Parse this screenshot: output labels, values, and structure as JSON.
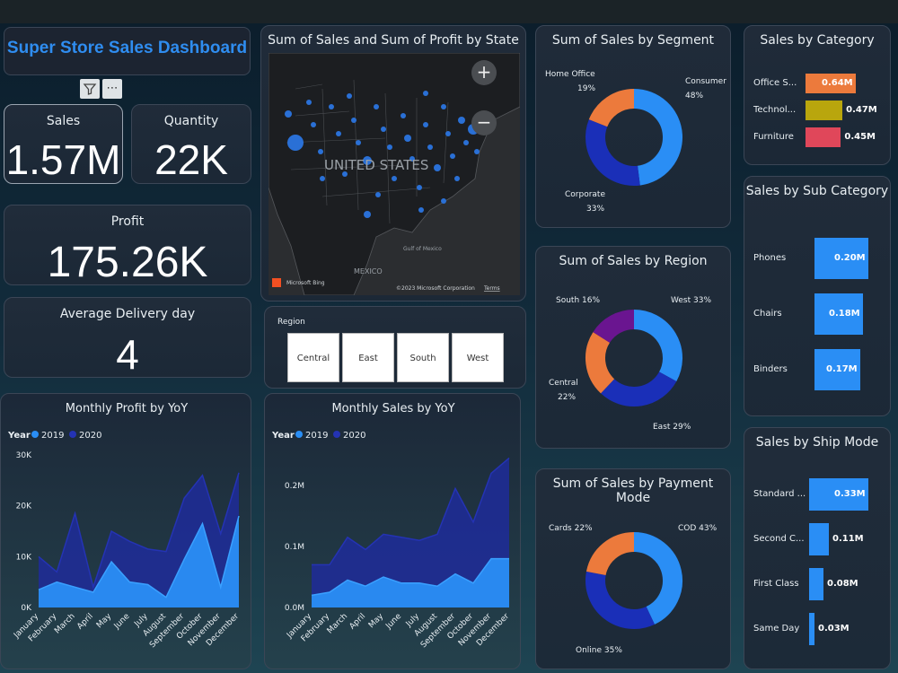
{
  "dashboard": {
    "title": "Super Store Sales Dashboard",
    "filter_icon": "filter-icon",
    "more_icon": "more-icon"
  },
  "kpis": {
    "sales": {
      "label": "Sales",
      "value": "1.57M"
    },
    "quantity": {
      "label": "Quantity",
      "value": "22K"
    },
    "profit": {
      "label": "Profit",
      "value": "175.26K"
    },
    "delivery": {
      "label": "Average Delivery day",
      "value": "4"
    }
  },
  "map": {
    "title": "Sum of Sales and Sum of Profit by State",
    "country_label": "UNITED STATES",
    "mexico_label": "MEXICO",
    "gulf_label": "Gulf of Mexico",
    "attribution": "Microsoft Bing",
    "copyright": "©2023 Microsoft Corporation",
    "terms": "Terms",
    "zoom_in": "+",
    "zoom_out": "−"
  },
  "region_slicer": {
    "title": "Region",
    "options": [
      "Central",
      "East",
      "South",
      "West"
    ]
  },
  "colors": {
    "blue_light": "#2a8ef5",
    "blue_dark": "#1a2fb8",
    "orange": "#ec7a3c",
    "purple": "#6a1590",
    "olive": "#b9a60d",
    "red": "#e0475a",
    "navy": "#1e2c9a"
  },
  "segment": {
    "title": "Sum of Sales by Segment",
    "slices": [
      {
        "name": "Consumer",
        "pct": "48%",
        "value": 48,
        "color": "#2a8ef5"
      },
      {
        "name": "Corporate",
        "pct": "33%",
        "value": 33,
        "color": "#1a2fb8"
      },
      {
        "name": "Home Office",
        "pct": "19%",
        "value": 19,
        "color": "#ec7a3c"
      }
    ]
  },
  "region_chart": {
    "title": "Sum of Sales by Region",
    "labels": {
      "west": "West 33%",
      "east": "East 29%",
      "central_name": "Central",
      "central_pct": "22%",
      "south": "South 16%"
    },
    "slices": [
      {
        "name": "West",
        "value": 33,
        "color": "#2a8ef5"
      },
      {
        "name": "East",
        "value": 29,
        "color": "#1a2fb8"
      },
      {
        "name": "Central",
        "value": 22,
        "color": "#ec7a3c"
      },
      {
        "name": "South",
        "value": 16,
        "color": "#6a1590"
      }
    ]
  },
  "payment": {
    "title": "Sum of Sales by Payment Mode",
    "labels": {
      "cod": "COD 43%",
      "online": "Online 35%",
      "cards": "Cards 22%"
    },
    "slices": [
      {
        "name": "COD",
        "value": 43,
        "color": "#2a8ef5"
      },
      {
        "name": "Online",
        "value": 35,
        "color": "#1a2fb8"
      },
      {
        "name": "Cards",
        "value": 22,
        "color": "#ec7a3c"
      }
    ]
  },
  "category": {
    "title": "Sales by Category",
    "items": [
      {
        "label": "Office S...",
        "value_label": "0.64M",
        "value": 0.64,
        "color": "#ec7a3c"
      },
      {
        "label": "Technol...",
        "value_label": "0.47M",
        "value": 0.47,
        "color": "#b9a60d"
      },
      {
        "label": "Furniture",
        "value_label": "0.45M",
        "value": 0.45,
        "color": "#e0475a"
      }
    ]
  },
  "subcategory": {
    "title": "Sales by Sub Category",
    "items": [
      {
        "label": "Phones",
        "value_label": "0.20M",
        "value": 0.2
      },
      {
        "label": "Chairs",
        "value_label": "0.18M",
        "value": 0.18
      },
      {
        "label": "Binders",
        "value_label": "0.17M",
        "value": 0.17
      }
    ]
  },
  "shipmode": {
    "title": "Sales by Ship Mode",
    "items": [
      {
        "label": "Standard ...",
        "value_label": "0.33M",
        "value": 0.33
      },
      {
        "label": "Second C...",
        "value_label": "0.11M",
        "value": 0.11
      },
      {
        "label": "First Class",
        "value_label": "0.08M",
        "value": 0.08
      },
      {
        "label": "Same Day",
        "value_label": "0.03M",
        "value": 0.03
      }
    ]
  },
  "chart_data": [
    {
      "type": "area",
      "title": "Monthly Profit by YoY",
      "legend_title": "Year",
      "legend_placement": "top-left",
      "categories": [
        "January",
        "February",
        "March",
        "April",
        "May",
        "June",
        "July",
        "August",
        "September",
        "October",
        "November",
        "December"
      ],
      "yticks": [
        "0K",
        "10K",
        "20K",
        "30K"
      ],
      "ylim": [
        0,
        30000
      ],
      "series": [
        {
          "name": "2020",
          "color": "#1e2c9a",
          "values": [
            10000,
            7000,
            18500,
            4000,
            15000,
            13000,
            11500,
            11000,
            21500,
            26000,
            14500,
            26500
          ]
        },
        {
          "name": "2019",
          "color": "#2a8ef5",
          "values": [
            3500,
            5000,
            4000,
            3000,
            9000,
            5000,
            4500,
            2000,
            9500,
            16500,
            4000,
            18000
          ]
        }
      ]
    },
    {
      "type": "area",
      "title": "Monthly Sales by YoY",
      "legend_title": "Year",
      "legend_placement": "top-left",
      "categories": [
        "January",
        "February",
        "March",
        "April",
        "May",
        "June",
        "July",
        "August",
        "September",
        "October",
        "November",
        "December"
      ],
      "yticks": [
        "0.0M",
        "0.1M",
        "0.2M"
      ],
      "ylim": [
        0,
        0.25
      ],
      "series": [
        {
          "name": "2020",
          "color": "#1e2c9a",
          "values": [
            0.07,
            0.07,
            0.115,
            0.095,
            0.12,
            0.115,
            0.11,
            0.12,
            0.195,
            0.14,
            0.22,
            0.245
          ]
        },
        {
          "name": "2019",
          "color": "#2a8ef5",
          "values": [
            0.02,
            0.025,
            0.045,
            0.035,
            0.05,
            0.04,
            0.04,
            0.035,
            0.055,
            0.04,
            0.08,
            0.08
          ]
        }
      ]
    }
  ]
}
